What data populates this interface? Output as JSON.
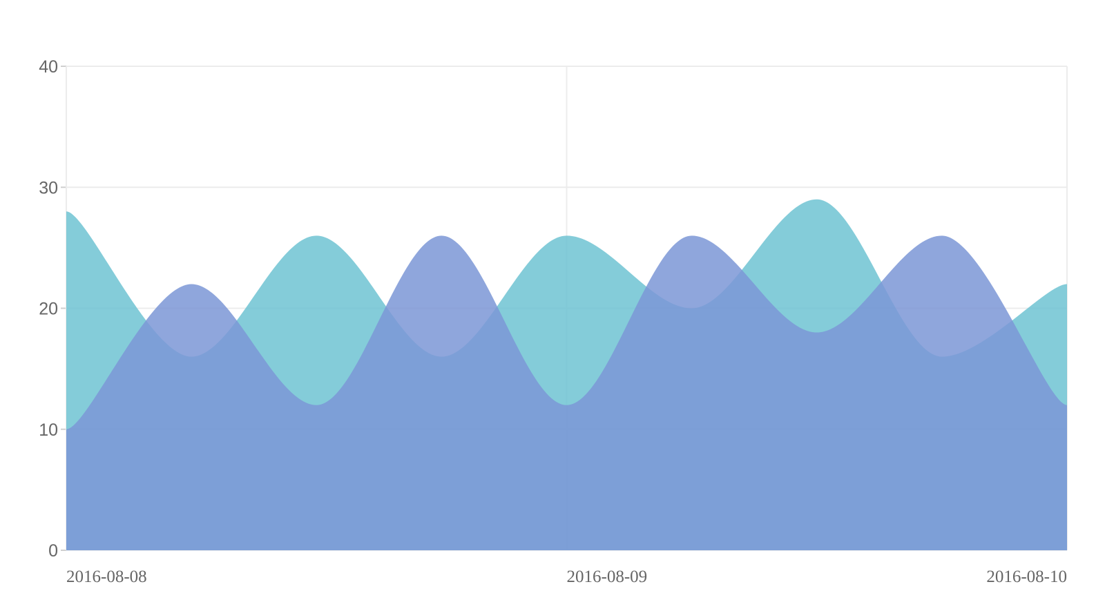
{
  "chart_data": {
    "type": "area",
    "x": [
      "2016-08-08T00:00",
      "2016-08-08T06:00",
      "2016-08-08T12:00",
      "2016-08-08T18:00",
      "2016-08-09T00:00",
      "2016-08-09T06:00",
      "2016-08-09T12:00",
      "2016-08-09T18:00",
      "2016-08-10T00:00"
    ],
    "x_tick_labels": [
      "2016-08-08",
      "2016-08-09",
      "2016-08-10"
    ],
    "y_ticks": [
      0,
      10,
      20,
      30,
      40
    ],
    "ylim": [
      0,
      40
    ],
    "grid": true,
    "series": [
      {
        "values": [
          28,
          16,
          26,
          16,
          26,
          20,
          29,
          16,
          22
        ],
        "color": "#6ec3d2"
      },
      {
        "values": [
          10,
          22,
          12,
          26,
          12,
          26,
          18,
          26,
          12
        ],
        "color": "#7b96d6"
      }
    ],
    "overlap_color": "#5fb0cf"
  }
}
